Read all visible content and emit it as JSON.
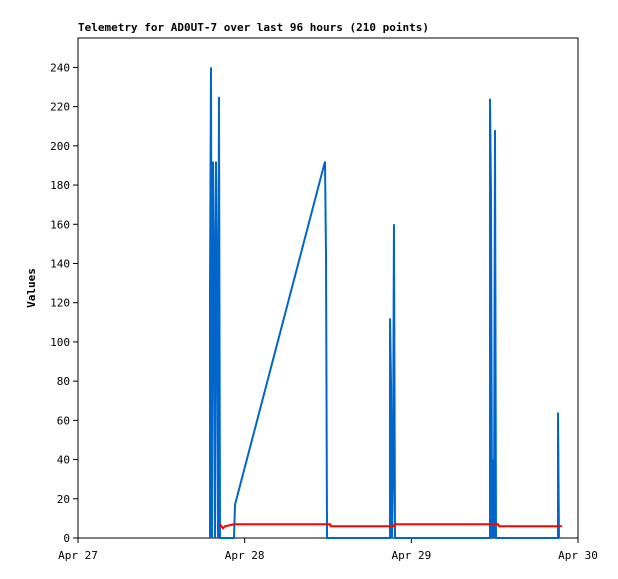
{
  "chart_data": {
    "type": "line",
    "title": "Telemetry for AD0UT-7 over last 96 hours (210 points)",
    "y_label": "Values",
    "xlim": [
      0,
      72
    ],
    "xticks": [
      {
        "value": 0,
        "label": "Apr 27"
      },
      {
        "value": 24,
        "label": "Apr 28"
      },
      {
        "value": 48,
        "label": "Apr 29"
      },
      {
        "value": 72,
        "label": "Apr 30"
      }
    ],
    "ylim": [
      0,
      255
    ],
    "yticks": [
      0,
      20,
      40,
      60,
      80,
      100,
      120,
      140,
      160,
      180,
      200,
      220,
      240
    ],
    "series": [
      {
        "color": "#0066cc",
        "x": [
          19.01,
          19.01,
          19.15,
          19.3,
          19.44,
          19.58,
          19.73,
          19.87,
          20.02,
          20.16,
          20.3,
          20.45,
          22.46,
          22.61,
          35.57,
          35.71,
          35.86,
          44.93,
          44.93,
          45.07,
          45.22,
          45.36,
          45.5,
          45.65,
          59.33,
          59.33,
          59.47,
          59.62,
          59.76,
          59.9,
          60.05,
          60.19,
          69.12,
          69.12,
          69.26
        ],
        "values": [
          0,
          128,
          240,
          0,
          192,
          145,
          0,
          192,
          128,
          0,
          225,
          0,
          0,
          17,
          192,
          145,
          0,
          0,
          112,
          80,
          0,
          32,
          160,
          0,
          0,
          224,
          176,
          0,
          40,
          0,
          208,
          0,
          0,
          64,
          0
        ]
      },
      {
        "color": "#ff0000",
        "x": [
          20.45,
          20.88,
          21.17,
          22.46,
          36.3,
          36.4,
          45.5,
          45.6,
          60.5,
          60.6,
          69.7
        ],
        "values": [
          7,
          5,
          6,
          7,
          7,
          6,
          6,
          7,
          7,
          6,
          6
        ]
      }
    ]
  }
}
